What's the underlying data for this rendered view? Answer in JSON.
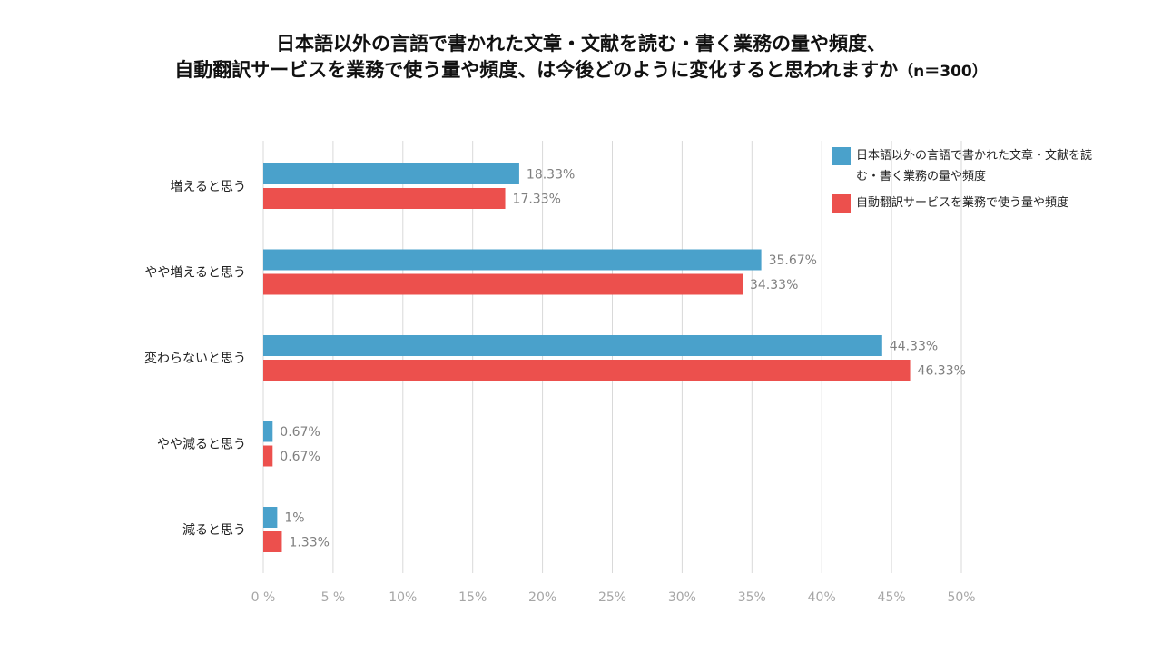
{
  "chart_data": {
    "type": "bar",
    "orientation": "horizontal",
    "title_line1": "日本語以外の言語で書かれた文章・文献を読む・書く業務の量や頻度、",
    "title_line2": "自動翻訳サービスを業務で使う量や頻度、は今後どのように変化すると思われますか",
    "title_n": "（n＝300）",
    "categories": [
      "増えると思う",
      "やや増えると思う",
      "変わらないと思う",
      "やや減ると思う",
      "減ると思う"
    ],
    "series": [
      {
        "name": "日本語以外の言語で書かれた文章・文献を読む・書く業務の量や頻度",
        "color": "#4aa1cb",
        "values": [
          18.33,
          35.67,
          44.33,
          0.67,
          1
        ],
        "labels": [
          "18.33%",
          "35.67%",
          "44.33%",
          "0.67%",
          "1%"
        ]
      },
      {
        "name": "自動翻訳サービスを業務で使う量や頻度",
        "color": "#ec504d",
        "values": [
          17.33,
          34.33,
          46.33,
          0.67,
          1.33
        ],
        "labels": [
          "17.33%",
          "34.33%",
          "46.33%",
          "0.67%",
          "1.33%"
        ]
      }
    ],
    "xlim": [
      0,
      50
    ],
    "x_ticks": [
      0,
      5,
      10,
      15,
      20,
      25,
      30,
      35,
      40,
      45,
      50
    ],
    "x_tick_labels": [
      "0 %",
      "5 %",
      "10%",
      "15%",
      "20%",
      "25%",
      "30%",
      "35%",
      "40%",
      "45%",
      "50%"
    ],
    "grid": true,
    "legend_position": "top-right",
    "xlabel": "",
    "ylabel": ""
  }
}
